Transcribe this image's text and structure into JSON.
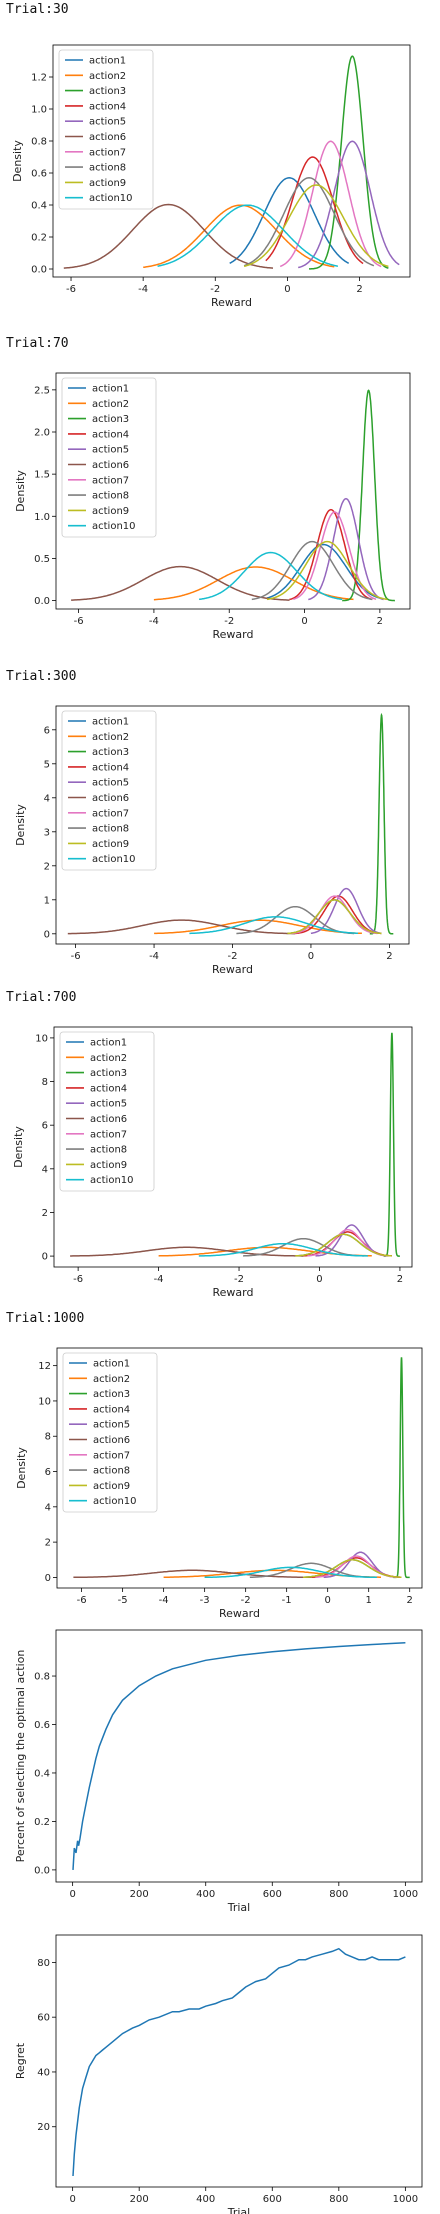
{
  "chart_data": [
    {
      "type": "line",
      "trial_label": "Trial:30",
      "xlabel": "Reward",
      "ylabel": "Density",
      "xlim": [
        -6.5,
        3.4
      ],
      "ylim": [
        -0.05,
        1.4
      ],
      "xticks": [
        -6,
        -4,
        -2,
        0,
        2
      ],
      "yticks": [
        0.0,
        0.2,
        0.4,
        0.6,
        0.8,
        1.0,
        1.2
      ],
      "legend_position": "top-left",
      "series": [
        {
          "name": "action1",
          "color": "#1f77b4",
          "mean": 0.05,
          "sd": 0.7,
          "min": -1.6,
          "max": 1.7
        },
        {
          "name": "action2",
          "color": "#ff7f0e",
          "mean": -1.3,
          "sd": 1.0,
          "min": -4.0,
          "max": 1.3
        },
        {
          "name": "action3",
          "color": "#2ca02c",
          "mean": 1.8,
          "sd": 0.3,
          "min": 0.6,
          "max": 2.8
        },
        {
          "name": "action4",
          "color": "#d62728",
          "mean": 0.7,
          "sd": 0.57,
          "min": -0.6,
          "max": 2.1
        },
        {
          "name": "action5",
          "color": "#9467bd",
          "mean": 1.8,
          "sd": 0.5,
          "min": 0.3,
          "max": 3.1
        },
        {
          "name": "action6",
          "color": "#8c564b",
          "mean": -3.3,
          "sd": 0.99,
          "min": -6.2,
          "max": -0.4
        },
        {
          "name": "action7",
          "color": "#e377c2",
          "mean": 1.2,
          "sd": 0.5,
          "min": -0.2,
          "max": 2.6
        },
        {
          "name": "action8",
          "color": "#7f7f7f",
          "mean": 0.6,
          "sd": 0.7,
          "min": -1.2,
          "max": 2.4
        },
        {
          "name": "action9",
          "color": "#bcbd22",
          "mean": 0.8,
          "sd": 0.76,
          "min": -1.2,
          "max": 2.8
        },
        {
          "name": "action10",
          "color": "#17becf",
          "mean": -1.1,
          "sd": 1.0,
          "min": -3.6,
          "max": 1.4
        }
      ]
    },
    {
      "type": "line",
      "trial_label": "Trial:70",
      "xlabel": "Reward",
      "ylabel": "Density",
      "xlim": [
        -6.6,
        2.8
      ],
      "ylim": [
        -0.1,
        2.7
      ],
      "xticks": [
        -6,
        -4,
        -2,
        0,
        2
      ],
      "yticks": [
        0.0,
        0.5,
        1.0,
        1.5,
        2.0,
        2.5
      ],
      "legend_position": "top-left",
      "series": [
        {
          "name": "action1",
          "color": "#1f77b4",
          "mean": 0.5,
          "sd": 0.6,
          "min": -1.0,
          "max": 2.0
        },
        {
          "name": "action2",
          "color": "#ff7f0e",
          "mean": -1.3,
          "sd": 1.0,
          "min": -4.0,
          "max": 1.3
        },
        {
          "name": "action3",
          "color": "#2ca02c",
          "mean": 1.7,
          "sd": 0.16,
          "min": 1.0,
          "max": 2.4
        },
        {
          "name": "action4",
          "color": "#d62728",
          "mean": 0.7,
          "sd": 0.37,
          "min": -0.4,
          "max": 1.8
        },
        {
          "name": "action5",
          "color": "#9467bd",
          "mean": 1.1,
          "sd": 0.33,
          "min": 0.1,
          "max": 2.1
        },
        {
          "name": "action6",
          "color": "#8c564b",
          "mean": -3.3,
          "sd": 0.99,
          "min": -6.2,
          "max": -0.4
        },
        {
          "name": "action7",
          "color": "#e377c2",
          "mean": 0.8,
          "sd": 0.38,
          "min": -0.3,
          "max": 1.9
        },
        {
          "name": "action8",
          "color": "#7f7f7f",
          "mean": 0.2,
          "sd": 0.57,
          "min": -1.4,
          "max": 1.8
        },
        {
          "name": "action9",
          "color": "#bcbd22",
          "mean": 0.6,
          "sd": 0.57,
          "min": -1.0,
          "max": 2.2
        },
        {
          "name": "action10",
          "color": "#17becf",
          "mean": -0.9,
          "sd": 0.7,
          "min": -2.8,
          "max": 1.0
        }
      ]
    },
    {
      "type": "line",
      "trial_label": "Trial:300",
      "xlabel": "Reward",
      "ylabel": "Density",
      "xlim": [
        -6.5,
        2.5
      ],
      "ylim": [
        -0.3,
        6.7
      ],
      "xticks": [
        -6,
        -4,
        -2,
        0,
        2
      ],
      "yticks": [
        0,
        1,
        2,
        3,
        4,
        5,
        6
      ],
      "legend_position": "top-left",
      "series": [
        {
          "name": "action1",
          "color": "#1f77b4",
          "mean": 0.6,
          "sd": 0.4,
          "min": -0.6,
          "max": 1.8
        },
        {
          "name": "action2",
          "color": "#ff7f0e",
          "mean": -1.3,
          "sd": 1.0,
          "min": -4.0,
          "max": 1.3
        },
        {
          "name": "action3",
          "color": "#2ca02c",
          "mean": 1.8,
          "sd": 0.062,
          "min": 1.5,
          "max": 2.1
        },
        {
          "name": "action4",
          "color": "#d62728",
          "mean": 0.7,
          "sd": 0.36,
          "min": -0.4,
          "max": 1.8
        },
        {
          "name": "action5",
          "color": "#9467bd",
          "mean": 0.9,
          "sd": 0.3,
          "min": 0.0,
          "max": 1.8
        },
        {
          "name": "action6",
          "color": "#8c564b",
          "mean": -3.3,
          "sd": 0.99,
          "min": -6.2,
          "max": -0.4
        },
        {
          "name": "action7",
          "color": "#e377c2",
          "mean": 0.6,
          "sd": 0.36,
          "min": -0.5,
          "max": 1.7
        },
        {
          "name": "action8",
          "color": "#7f7f7f",
          "mean": -0.4,
          "sd": 0.5,
          "min": -1.9,
          "max": 1.1
        },
        {
          "name": "action9",
          "color": "#bcbd22",
          "mean": 0.6,
          "sd": 0.4,
          "min": -0.6,
          "max": 1.8
        },
        {
          "name": "action10",
          "color": "#17becf",
          "mean": -0.9,
          "sd": 0.8,
          "min": -3.1,
          "max": 1.2
        }
      ]
    },
    {
      "type": "line",
      "trial_label": "Trial:700",
      "xlabel": "Reward",
      "ylabel": "Density",
      "xlim": [
        -6.6,
        2.3
      ],
      "ylim": [
        -0.5,
        10.5
      ],
      "xticks": [
        -6,
        -4,
        -2,
        0,
        2
      ],
      "yticks": [
        0,
        2,
        4,
        6,
        8,
        10
      ],
      "legend_position": "top-left",
      "series": [
        {
          "name": "action1",
          "color": "#1f77b4",
          "mean": 0.6,
          "sd": 0.4,
          "min": -0.6,
          "max": 1.8
        },
        {
          "name": "action2",
          "color": "#ff7f0e",
          "mean": -1.3,
          "sd": 1.0,
          "min": -4.0,
          "max": 1.3
        },
        {
          "name": "action3",
          "color": "#2ca02c",
          "mean": 1.8,
          "sd": 0.039,
          "min": 1.6,
          "max": 2.0
        },
        {
          "name": "action4",
          "color": "#d62728",
          "mean": 0.7,
          "sd": 0.36,
          "min": -0.4,
          "max": 1.8
        },
        {
          "name": "action5",
          "color": "#9467bd",
          "mean": 0.8,
          "sd": 0.28,
          "min": -0.1,
          "max": 1.7
        },
        {
          "name": "action6",
          "color": "#8c564b",
          "mean": -3.3,
          "sd": 0.99,
          "min": -6.2,
          "max": -0.4
        },
        {
          "name": "action7",
          "color": "#e377c2",
          "mean": 0.7,
          "sd": 0.33,
          "min": -0.3,
          "max": 1.7
        },
        {
          "name": "action8",
          "color": "#7f7f7f",
          "mean": -0.4,
          "sd": 0.5,
          "min": -1.9,
          "max": 1.1
        },
        {
          "name": "action9",
          "color": "#bcbd22",
          "mean": 0.6,
          "sd": 0.4,
          "min": -0.6,
          "max": 1.8
        },
        {
          "name": "action10",
          "color": "#17becf",
          "mean": -0.9,
          "sd": 0.7,
          "min": -3.0,
          "max": 1.2
        }
      ]
    },
    {
      "type": "line",
      "trial_label": "Trial:1000",
      "xlabel": "Reward",
      "ylabel": "Density",
      "xlim": [
        -6.6,
        2.3
      ],
      "ylim": [
        -0.6,
        13.0
      ],
      "xticks": [
        -6,
        -5,
        -4,
        -3,
        -2,
        -1,
        0,
        1,
        2
      ],
      "yticks": [
        0,
        2,
        4,
        6,
        8,
        10,
        12
      ],
      "legend_position": "top-left",
      "series": [
        {
          "name": "action1",
          "color": "#1f77b4",
          "mean": 0.6,
          "sd": 0.4,
          "min": -0.6,
          "max": 1.8
        },
        {
          "name": "action2",
          "color": "#ff7f0e",
          "mean": -1.3,
          "sd": 1.0,
          "min": -4.0,
          "max": 1.3
        },
        {
          "name": "action3",
          "color": "#2ca02c",
          "mean": 1.8,
          "sd": 0.032,
          "min": 1.6,
          "max": 2.0
        },
        {
          "name": "action4",
          "color": "#d62728",
          "mean": 0.7,
          "sd": 0.36,
          "min": -0.4,
          "max": 1.8
        },
        {
          "name": "action5",
          "color": "#9467bd",
          "mean": 0.8,
          "sd": 0.28,
          "min": -0.1,
          "max": 1.7
        },
        {
          "name": "action6",
          "color": "#8c564b",
          "mean": -3.3,
          "sd": 0.99,
          "min": -6.2,
          "max": -0.4
        },
        {
          "name": "action7",
          "color": "#e377c2",
          "mean": 0.7,
          "sd": 0.33,
          "min": -0.3,
          "max": 1.7
        },
        {
          "name": "action8",
          "color": "#7f7f7f",
          "mean": -0.4,
          "sd": 0.5,
          "min": -1.9,
          "max": 1.1
        },
        {
          "name": "action9",
          "color": "#bcbd22",
          "mean": 0.6,
          "sd": 0.4,
          "min": -0.6,
          "max": 1.8
        },
        {
          "name": "action10",
          "color": "#17becf",
          "mean": -0.9,
          "sd": 0.7,
          "min": -3.0,
          "max": 1.2
        }
      ]
    },
    {
      "type": "line",
      "xlabel": "Trial",
      "ylabel": "Percent of selecting the optimal action",
      "xlim": [
        -50,
        1050
      ],
      "ylim": [
        -0.05,
        0.99
      ],
      "xticks": [
        0,
        200,
        400,
        600,
        800,
        1000
      ],
      "yticks": [
        0.0,
        0.2,
        0.4,
        0.6,
        0.8
      ],
      "series": [
        {
          "color": "#1f77b4",
          "x": [
            1,
            5,
            10,
            15,
            18,
            22,
            30,
            40,
            50,
            60,
            70,
            80,
            100,
            120,
            150,
            200,
            250,
            300,
            400,
            500,
            600,
            700,
            800,
            900,
            1000
          ],
          "y": [
            0.0,
            0.09,
            0.07,
            0.12,
            0.1,
            0.13,
            0.2,
            0.27,
            0.34,
            0.4,
            0.46,
            0.51,
            0.58,
            0.64,
            0.7,
            0.76,
            0.8,
            0.83,
            0.865,
            0.885,
            0.9,
            0.912,
            0.922,
            0.93,
            0.937
          ]
        }
      ]
    },
    {
      "type": "line",
      "xlabel": "Trial",
      "ylabel": "Regret",
      "xlim": [
        -50,
        1050
      ],
      "ylim": [
        -2,
        90
      ],
      "xticks": [
        0,
        200,
        400,
        600,
        800,
        1000
      ],
      "yticks": [
        20,
        40,
        60,
        80
      ],
      "series": [
        {
          "color": "#1f77b4",
          "x": [
            1,
            5,
            10,
            20,
            30,
            40,
            50,
            60,
            70,
            80,
            90,
            100,
            120,
            150,
            180,
            200,
            230,
            260,
            300,
            320,
            350,
            380,
            400,
            430,
            450,
            480,
            500,
            520,
            550,
            580,
            600,
            620,
            650,
            680,
            700,
            720,
            750,
            780,
            800,
            810,
            820,
            840,
            860,
            880,
            900,
            920,
            940,
            960,
            980,
            1000
          ],
          "y": [
            2,
            10,
            17,
            27,
            34,
            38,
            42,
            44,
            46,
            47,
            48,
            49,
            51,
            54,
            56,
            57,
            59,
            60,
            62,
            62,
            63,
            63,
            64,
            65,
            66,
            67,
            69,
            71,
            73,
            74,
            76,
            78,
            79,
            81,
            81,
            82,
            83,
            84,
            85,
            84,
            83,
            82,
            81,
            81,
            82,
            81,
            81,
            81,
            81,
            82
          ]
        }
      ]
    }
  ]
}
